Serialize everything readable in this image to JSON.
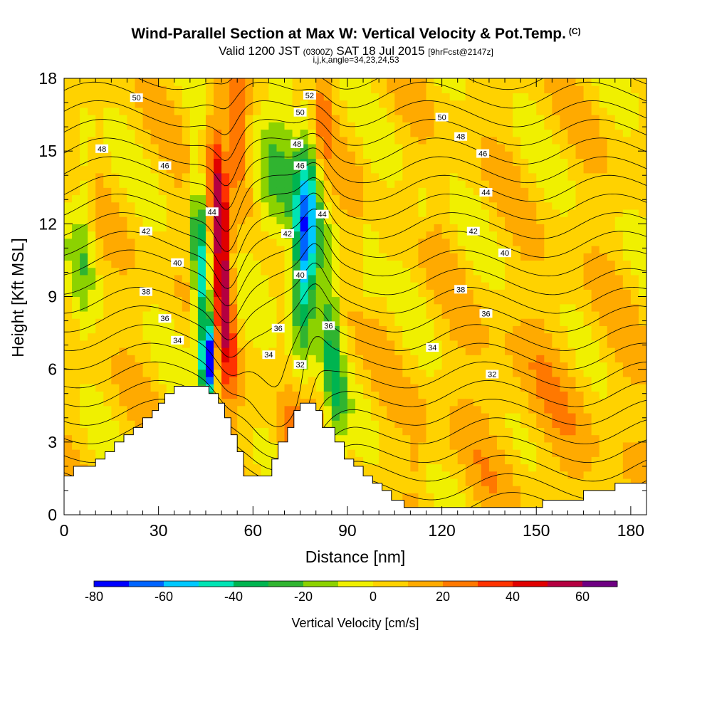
{
  "title": {
    "main": "Wind-Parallel Section at Max W: Vertical Velocity & Pot.Temp.",
    "copyright": "(C)",
    "valid_prefix": "Valid 1200 JST",
    "valid_utc": "(0300Z)",
    "valid_date": "SAT 18 Jul 2015",
    "forecast": "[9hrFcst@2147z]",
    "indices": "i,j,k,angle=34,23,24,53"
  },
  "chart_data": {
    "type": "heatmap",
    "xlabel": "Distance [nm]",
    "ylabel": "Height [Kft MSL]",
    "xlim": [
      0,
      185
    ],
    "ylim": [
      0,
      18
    ],
    "xticks": [
      "0",
      "30",
      "60",
      "90",
      "120",
      "150",
      "180"
    ],
    "xtick_values": [
      0,
      30,
      60,
      90,
      120,
      150,
      180
    ],
    "yticks": [
      "0",
      "3",
      "6",
      "9",
      "12",
      "15",
      "18"
    ],
    "ytick_values": [
      0,
      3,
      6,
      9,
      12,
      15,
      18
    ],
    "colorbar": {
      "label": "Vertical Velocity [cm/s]",
      "ticks": [
        "-80",
        "-60",
        "-40",
        "-20",
        "0",
        "20",
        "40",
        "60"
      ],
      "tick_values": [
        -80,
        -60,
        -40,
        -20,
        0,
        20,
        40,
        60
      ],
      "min": -80,
      "step": 10,
      "colors": [
        "#0000ff",
        "#0064ff",
        "#00c8ff",
        "#00e4b4",
        "#00b450",
        "#30b430",
        "#8cd200",
        "#f0f000",
        "#ffd200",
        "#ffaa00",
        "#ff7800",
        "#ff3200",
        "#e00000",
        "#b40040",
        "#6e0082"
      ]
    },
    "terrain_kft": [
      [
        0,
        1.3
      ],
      [
        0,
        1.6
      ],
      [
        3,
        1.6
      ],
      [
        3,
        2
      ],
      [
        10,
        2
      ],
      [
        10,
        2.3
      ],
      [
        13,
        2.3
      ],
      [
        13,
        2.6
      ],
      [
        16,
        2.6
      ],
      [
        16,
        3
      ],
      [
        19,
        3
      ],
      [
        19,
        3.3
      ],
      [
        22,
        3.3
      ],
      [
        22,
        3.6
      ],
      [
        25,
        3.6
      ],
      [
        25,
        4
      ],
      [
        28,
        4
      ],
      [
        28,
        4.3
      ],
      [
        30,
        4.3
      ],
      [
        30,
        4.6
      ],
      [
        32,
        4.6
      ],
      [
        32,
        5
      ],
      [
        35,
        5
      ],
      [
        35,
        5.3
      ],
      [
        46,
        5.3
      ],
      [
        46,
        5
      ],
      [
        49,
        5
      ],
      [
        49,
        4.6
      ],
      [
        51,
        4.6
      ],
      [
        51,
        4
      ],
      [
        53,
        4
      ],
      [
        53,
        3.3
      ],
      [
        55,
        3.3
      ],
      [
        55,
        2.6
      ],
      [
        57,
        2.6
      ],
      [
        57,
        1.6
      ],
      [
        66,
        1.6
      ],
      [
        66,
        2.3
      ],
      [
        68,
        2.3
      ],
      [
        68,
        3
      ],
      [
        71,
        3
      ],
      [
        71,
        3.6
      ],
      [
        73,
        3.6
      ],
      [
        73,
        4.3
      ],
      [
        75,
        4.3
      ],
      [
        75,
        4.6
      ],
      [
        80,
        4.6
      ],
      [
        80,
        4.3
      ],
      [
        82,
        4.3
      ],
      [
        82,
        3.6
      ],
      [
        86,
        3.6
      ],
      [
        86,
        3
      ],
      [
        89,
        3
      ],
      [
        89,
        2.3
      ],
      [
        92,
        2.3
      ],
      [
        92,
        2
      ],
      [
        95,
        2
      ],
      [
        95,
        1.6
      ],
      [
        98,
        1.6
      ],
      [
        98,
        1.3
      ],
      [
        101,
        1.3
      ],
      [
        101,
        1
      ],
      [
        104,
        1
      ],
      [
        104,
        0.6
      ],
      [
        108,
        0.6
      ],
      [
        108,
        0.3
      ],
      [
        152,
        0.3
      ],
      [
        152,
        0.6
      ],
      [
        165,
        0.6
      ],
      [
        165,
        1
      ],
      [
        175,
        1
      ],
      [
        175,
        1.3
      ],
      [
        185,
        1.3
      ],
      [
        185,
        0
      ],
      [
        0,
        0
      ]
    ],
    "theta_labels": [
      {
        "text": "50",
        "x": 23,
        "y": 17.2
      },
      {
        "text": "52",
        "x": 78,
        "y": 17.3
      },
      {
        "text": "50",
        "x": 75,
        "y": 16.6
      },
      {
        "text": "50",
        "x": 120,
        "y": 16.4
      },
      {
        "text": "48",
        "x": 126,
        "y": 15.6
      },
      {
        "text": "48",
        "x": 12,
        "y": 15.1
      },
      {
        "text": "48",
        "x": 74,
        "y": 15.3
      },
      {
        "text": "46",
        "x": 32,
        "y": 14.4
      },
      {
        "text": "46",
        "x": 75,
        "y": 14.4
      },
      {
        "text": "46",
        "x": 133,
        "y": 14.9
      },
      {
        "text": "44",
        "x": 134,
        "y": 13.3
      },
      {
        "text": "44",
        "x": 47,
        "y": 12.5
      },
      {
        "text": "44",
        "x": 82,
        "y": 12.4
      },
      {
        "text": "42",
        "x": 26,
        "y": 11.7
      },
      {
        "text": "42",
        "x": 71,
        "y": 11.6
      },
      {
        "text": "42",
        "x": 130,
        "y": 11.7
      },
      {
        "text": "40",
        "x": 140,
        "y": 10.8
      },
      {
        "text": "40",
        "x": 36,
        "y": 10.4
      },
      {
        "text": "40",
        "x": 75,
        "y": 9.9
      },
      {
        "text": "38",
        "x": 26,
        "y": 9.2
      },
      {
        "text": "38",
        "x": 126,
        "y": 9.3
      },
      {
        "text": "36",
        "x": 134,
        "y": 8.3
      },
      {
        "text": "36",
        "x": 32,
        "y": 8.1
      },
      {
        "text": "36",
        "x": 68,
        "y": 7.7
      },
      {
        "text": "36",
        "x": 84,
        "y": 7.8
      },
      {
        "text": "34",
        "x": 36,
        "y": 7.2
      },
      {
        "text": "34",
        "x": 117,
        "y": 6.9
      },
      {
        "text": "34",
        "x": 65,
        "y": 6.6
      },
      {
        "text": "32",
        "x": 75,
        "y": 6.2
      },
      {
        "text": "32",
        "x": 136,
        "y": 5.8
      }
    ]
  }
}
